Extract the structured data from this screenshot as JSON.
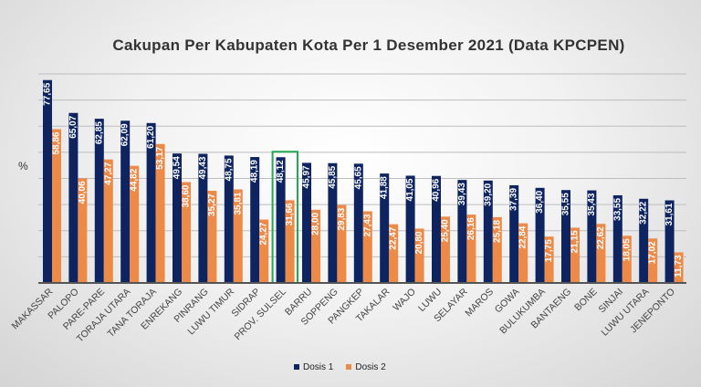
{
  "chart_data": {
    "type": "bar",
    "title": "Cakupan Per Kabupaten Kota Per 1 Desember 2021 (Data KPCPEN)",
    "xlabel": "",
    "ylabel": "%",
    "ylim": [
      0,
      80
    ],
    "grid": true,
    "legend_position": "bottom",
    "highlighted_category": "PROV. SULSEL",
    "categories": [
      "MAKASSAR",
      "PALOPO",
      "PARE-PARE",
      "TORAJA UTARA",
      "TANA TORAJA",
      "ENREKANG",
      "PINRANG",
      "LUWU TIMUR",
      "SIDRAP",
      "PROV. SULSEL",
      "BARRU",
      "SOPPENG",
      "PANGKEP",
      "TAKALAR",
      "WAJO",
      "LUWU",
      "SELAYAR",
      "MAROS",
      "GOWA",
      "BULUKUMBA",
      "BANTAENG",
      "BONE",
      "SINJAI",
      "LUWU UTARA",
      "JENEPONTO"
    ],
    "series": [
      {
        "name": "Dosis 1",
        "color": "#0d2461",
        "values": [
          77.65,
          65.07,
          62.85,
          62.09,
          61.2,
          49.54,
          49.43,
          48.75,
          48.19,
          48.12,
          45.97,
          45.85,
          45.65,
          41.88,
          41.05,
          40.96,
          39.43,
          39.2,
          37.39,
          36.4,
          35.55,
          35.43,
          33.55,
          32.22,
          31.61
        ]
      },
      {
        "name": "Dosis 2",
        "color": "#ee8a48",
        "values": [
          58.86,
          40.06,
          47.27,
          44.82,
          53.17,
          38.6,
          35.27,
          35.81,
          24.27,
          31.66,
          28.0,
          29.83,
          27.43,
          22.47,
          20.8,
          25.4,
          26.16,
          25.18,
          22.84,
          17.75,
          21.15,
          22.62,
          18.05,
          17.02,
          11.73
        ]
      }
    ]
  }
}
